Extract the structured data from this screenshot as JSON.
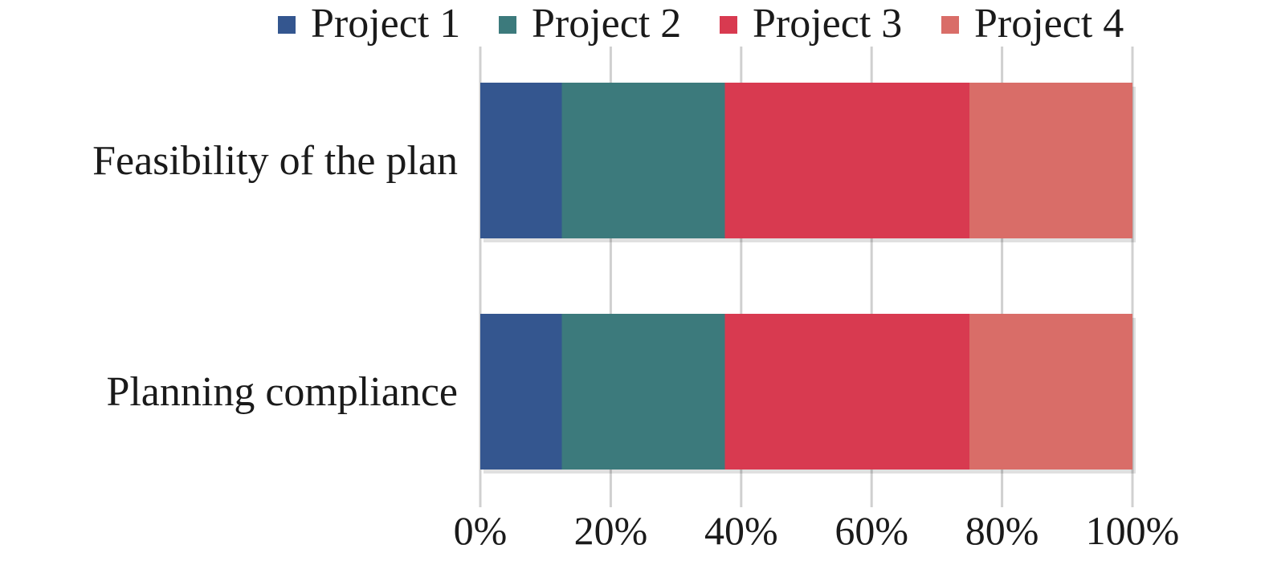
{
  "chart_data": {
    "type": "bar",
    "orientation": "horizontal",
    "stacked": "percent",
    "categories": [
      "Feasibility of the plan",
      "Planning compliance"
    ],
    "series": [
      {
        "name": "Project 1",
        "values": [
          12.5,
          12.5
        ],
        "color": "#34568f"
      },
      {
        "name": "Project 2",
        "values": [
          25,
          25
        ],
        "color": "#3c7a7c"
      },
      {
        "name": "Project 3",
        "values": [
          37.5,
          37.5
        ],
        "color": "#d83a50"
      },
      {
        "name": "Project 4",
        "values": [
          25,
          25
        ],
        "color": "#d96d68"
      }
    ],
    "xlim": [
      0,
      100
    ],
    "xticks": [
      "0%",
      "20%",
      "40%",
      "60%",
      "80%",
      "100%"
    ],
    "grid": "vertical",
    "legend_position": "top"
  }
}
